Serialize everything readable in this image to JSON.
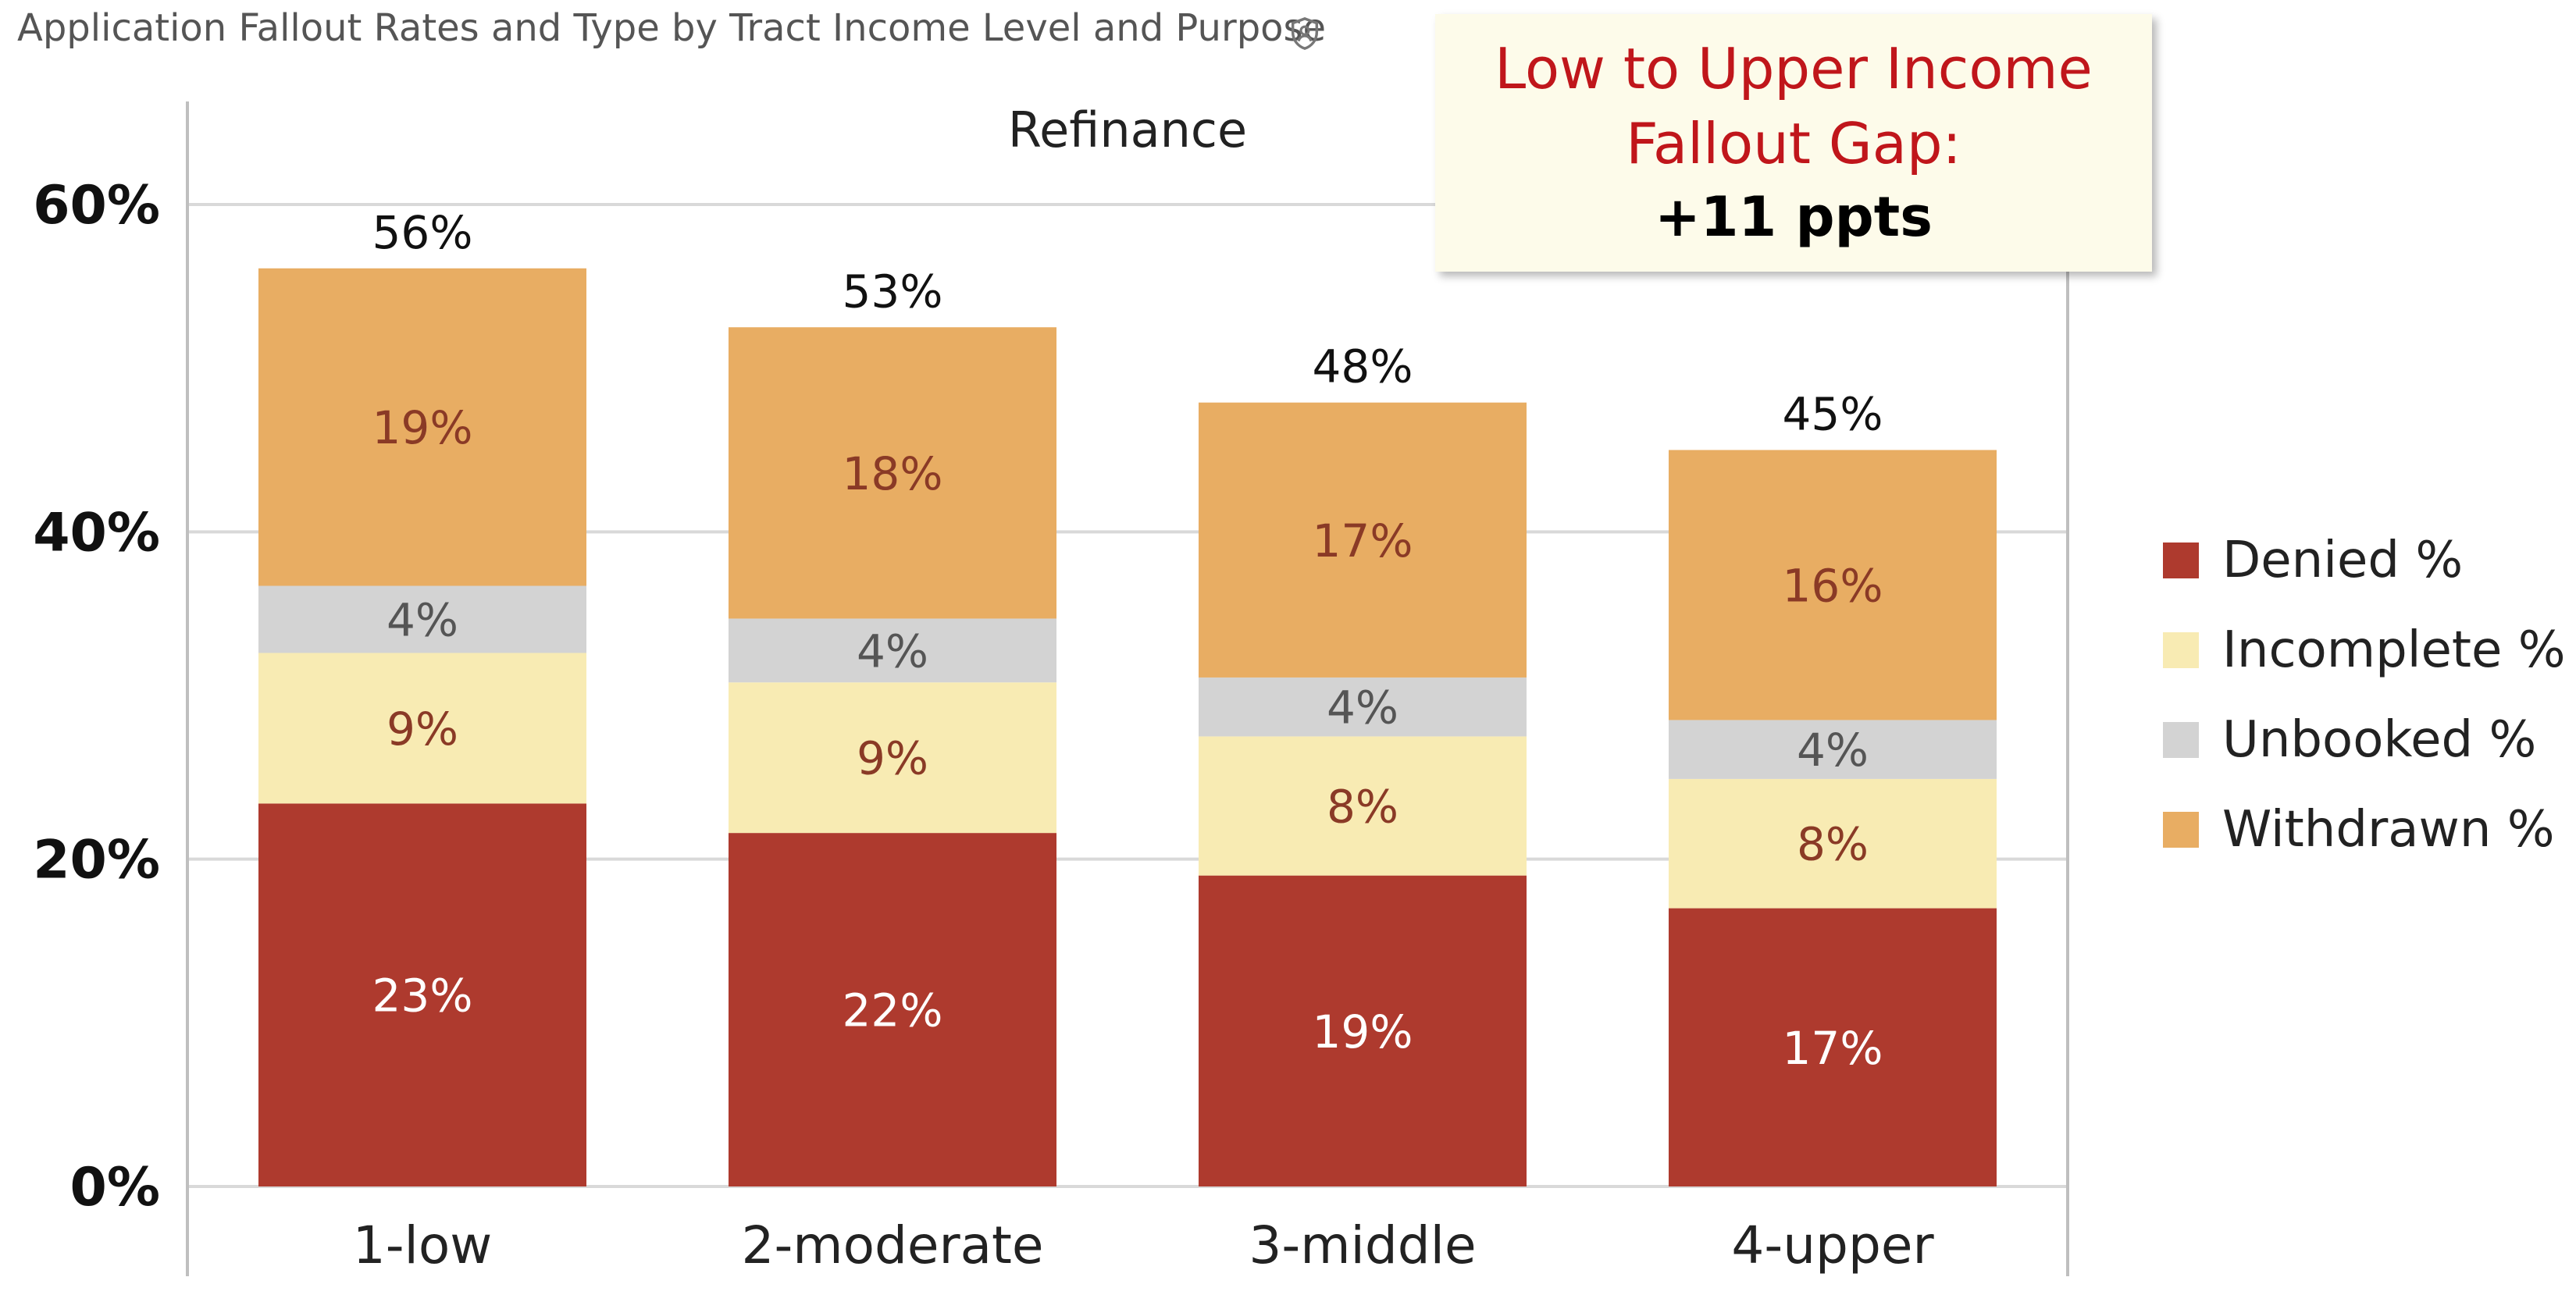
{
  "header": {
    "title": "Application Fallout Rates and Type by Tract Income Level and Purpose",
    "info_icon": "shield-person-icon"
  },
  "callout": {
    "line1": "Low to Upper Income",
    "line2": "Fallout Gap:",
    "line3": "+11 ppts"
  },
  "chart_data": {
    "type": "bar",
    "stacked": true,
    "title": "Refinance",
    "categories": [
      "1-low",
      "2-moderate",
      "3-middle",
      "4-upper"
    ],
    "series": [
      {
        "name": "Denied %",
        "values": [
          23.4,
          21.6,
          19.0,
          17.0
        ],
        "labels": [
          "23%",
          "22%",
          "19%",
          "17%"
        ],
        "color": "#ae3a2e",
        "label_color": "#ffffff"
      },
      {
        "name": "Incomplete %",
        "values": [
          9.2,
          9.2,
          8.5,
          7.9
        ],
        "labels": [
          "9%",
          "9%",
          "8%",
          "8%"
        ],
        "color": "#f8ebb3",
        "label_color": "#8a3a26"
      },
      {
        "name": "Unbooked %",
        "values": [
          4.1,
          3.9,
          3.6,
          3.6
        ],
        "labels": [
          "4%",
          "4%",
          "4%",
          "4%"
        ],
        "color": "#d3d3d3",
        "label_color": "#555555"
      },
      {
        "name": "Withdrawn %",
        "values": [
          19.4,
          17.8,
          16.8,
          16.5
        ],
        "labels": [
          "19%",
          "18%",
          "17%",
          "16%"
        ],
        "color": "#e8ad63",
        "label_color": "#8a3a26"
      }
    ],
    "totals": [
      56,
      53,
      48,
      45
    ],
    "total_labels": [
      "56%",
      "53%",
      "48%",
      "45%"
    ],
    "ylim": [
      0,
      60
    ],
    "yticks": [
      0,
      20,
      40,
      60
    ],
    "ytick_labels": [
      "0%",
      "20%",
      "40%",
      "60%"
    ],
    "grid": true,
    "legend_position": "right",
    "colors": {
      "gridline": "#d9d9d9",
      "axis": "#bfbfbf"
    }
  }
}
